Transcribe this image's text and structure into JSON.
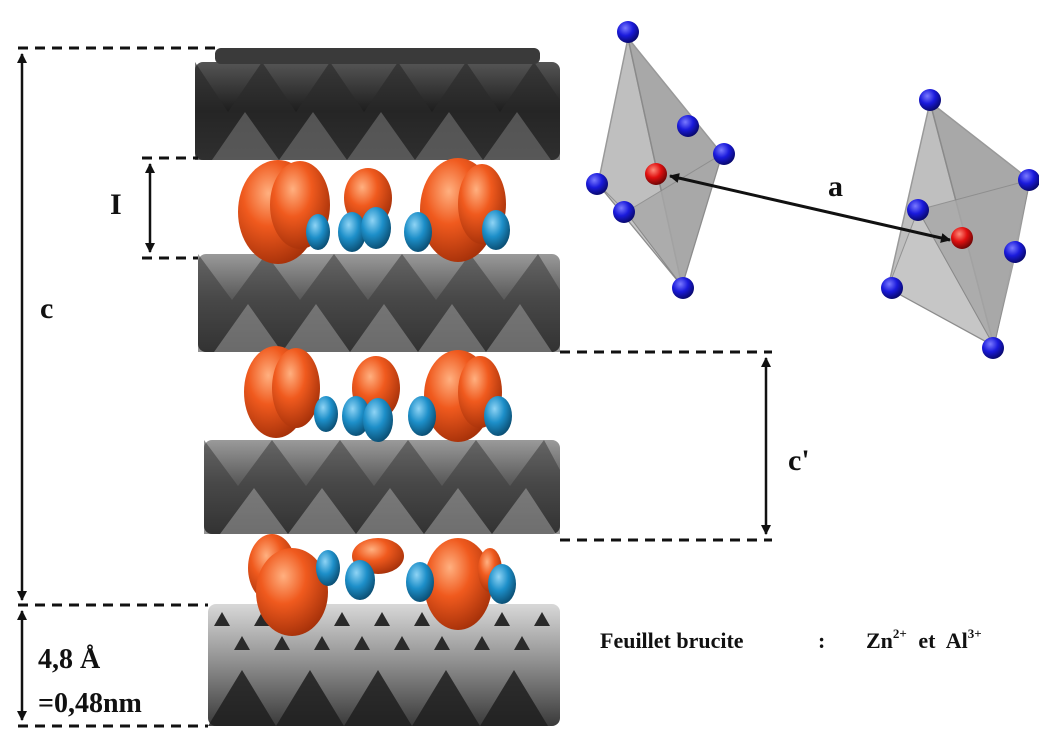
{
  "labels": {
    "c": "c",
    "interlayer": "I",
    "c_prime": "c'",
    "a": "a",
    "thickness_line1": "4,8 Å",
    "thickness_line2": "=0,48nm"
  },
  "caption": {
    "prefix": "Feuillet brucite",
    "separator": ":",
    "ion1_symbol": "Zn",
    "ion1_charge": "2+",
    "joiner": "et",
    "ion2_symbol": "Al",
    "ion2_charge": "3+"
  },
  "colors": {
    "sheet_dark": "#1f1f1f",
    "sheet_mid": "#6a6a6a",
    "sheet_light": "#c8c8c8",
    "anion_orange": "#f05a1e",
    "water_blue": "#1d8fc9",
    "octa_vertex": "#1a1adc",
    "octa_center": "#e01010",
    "octa_face": "#b4b4b4"
  }
}
